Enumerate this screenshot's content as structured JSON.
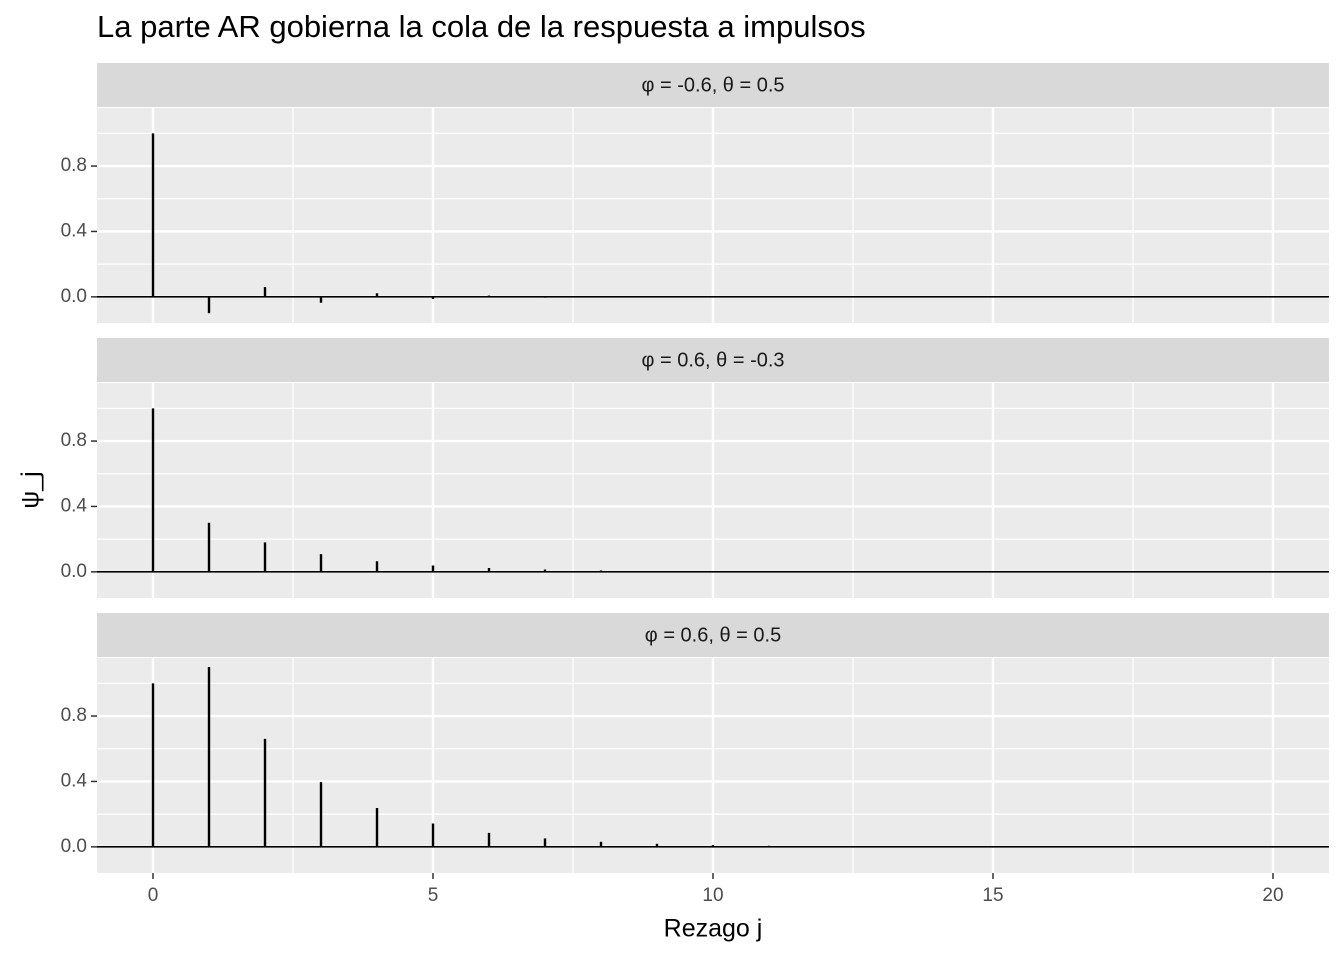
{
  "figure": {
    "title": "La parte AR gobierna la cola de la respuesta a impulsos",
    "x_label": "Rezago j",
    "y_label": "ψ_j"
  },
  "chart_data": [
    {
      "type": "stem",
      "title": "φ = -0.6, θ = 0.5",
      "color": "#000000",
      "x": [
        0,
        1,
        2,
        3,
        4,
        5,
        6,
        7,
        8,
        9,
        10,
        11,
        12,
        13,
        14,
        15,
        16,
        17,
        18,
        19,
        20
      ],
      "values": [
        1,
        -0.1,
        0.06,
        -0.036,
        0.0216,
        -0.013,
        0.0078,
        -0.0047,
        0.0028,
        -0.0017,
        0.001,
        -0.0006,
        0.0004,
        -0.0002,
        0.0001,
        -0.0001,
        0,
        0,
        0,
        0,
        0
      ],
      "xlim": [
        -1,
        21
      ],
      "xticks": [
        0,
        5,
        10,
        15,
        20
      ],
      "ylim": [
        -0.16,
        1.155
      ],
      "yticks": [
        {
          "value": 0,
          "label": "0.0"
        },
        0.4,
        0.8
      ],
      "reference_line": 0,
      "grid": true
    },
    {
      "type": "stem",
      "title": "φ = 0.6, θ = -0.3",
      "color": "#000000",
      "x": [
        0,
        1,
        2,
        3,
        4,
        5,
        6,
        7,
        8,
        9,
        10,
        11,
        12,
        13,
        14,
        15,
        16,
        17,
        18,
        19,
        20
      ],
      "values": [
        1,
        0.3,
        0.18,
        0.108,
        0.0648,
        0.0389,
        0.0233,
        0.014,
        0.0084,
        0.005,
        0.003,
        0.0018,
        0.0011,
        0.0007,
        0.0004,
        0.0002,
        0.0001,
        0.0001,
        0,
        0,
        0
      ],
      "xlim": [
        -1,
        21
      ],
      "xticks": [
        0,
        5,
        10,
        15,
        20
      ],
      "ylim": [
        -0.16,
        1.155
      ],
      "yticks": [
        {
          "value": 0,
          "label": "0.0"
        },
        0.4,
        0.8
      ],
      "reference_line": 0,
      "grid": true
    },
    {
      "type": "stem",
      "title": "φ = 0.6, θ = 0.5",
      "color": "#000000",
      "x": [
        0,
        1,
        2,
        3,
        4,
        5,
        6,
        7,
        8,
        9,
        10,
        11,
        12,
        13,
        14,
        15,
        16,
        17,
        18,
        19,
        20
      ],
      "values": [
        1,
        1.1,
        0.66,
        0.396,
        0.2376,
        0.1426,
        0.0855,
        0.0513,
        0.0308,
        0.0185,
        0.0111,
        0.0067,
        0.004,
        0.0024,
        0.0014,
        0.0009,
        0.0005,
        0.0003,
        0.0002,
        0.0001,
        0.0001
      ],
      "xlim": [
        -1,
        21
      ],
      "xticks": [
        0,
        5,
        10,
        15,
        20
      ],
      "ylim": [
        -0.16,
        1.155
      ],
      "yticks": [
        {
          "value": 0,
          "label": "0.0"
        },
        0.4,
        0.8
      ],
      "reference_line": 0,
      "grid": true
    }
  ]
}
